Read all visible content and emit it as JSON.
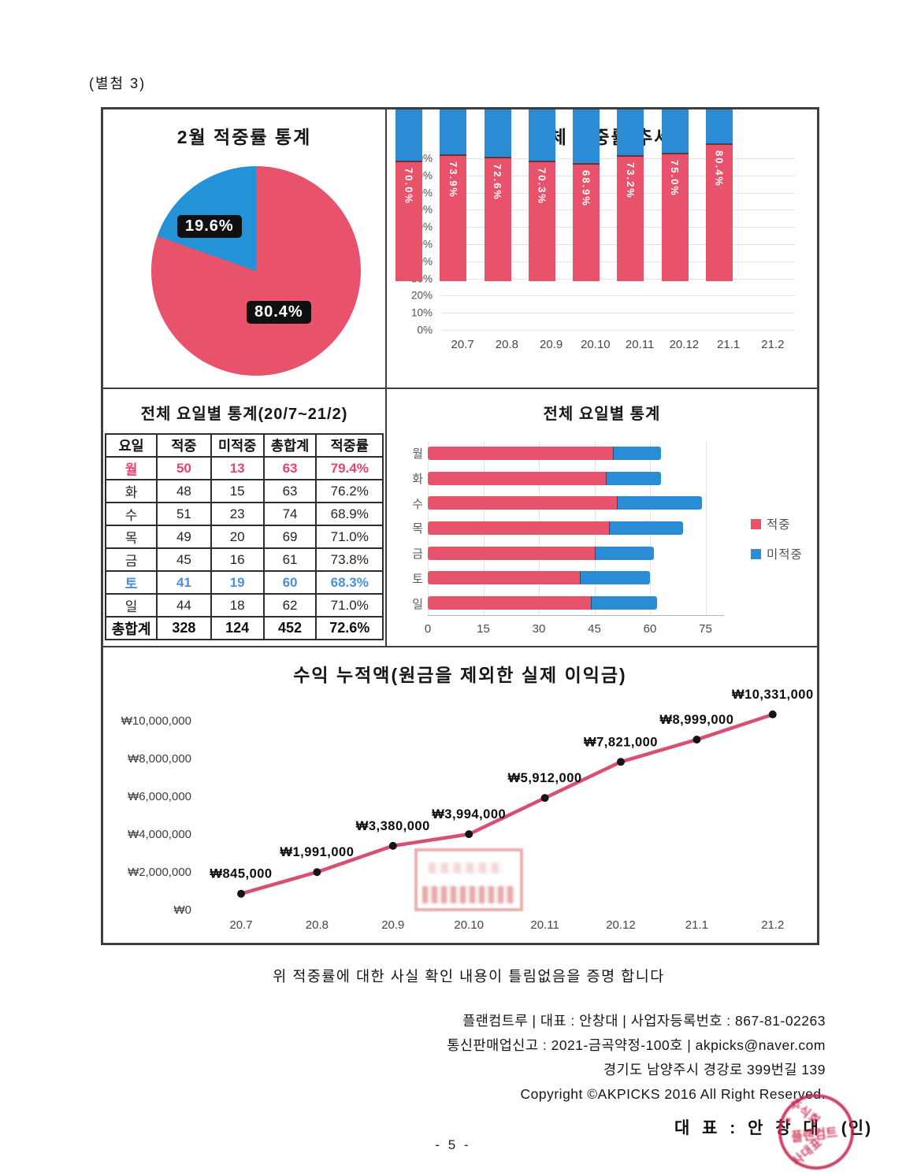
{
  "page": {
    "attachment_label": "(별첨 3)",
    "certification": "위 적중률에 대한 사실 확인 내용이 틀림없음을 증명 합니다",
    "company_lines": [
      "플랜컴트루 | 대표 : 안창대 | 사업자등록번호 : 867-81-02263",
      "통신판매업신고 : 2021-금곡약정-100호 | akpicks@naver.com",
      "경기도 남양주시 경강로 399번길 139",
      "Copyright ©AKPICKS 2016 All Right Reserved."
    ],
    "representative_line": "대 표 : 안 창 대",
    "seal_suffix": "(인)",
    "page_number": "- 5 -"
  },
  "colors": {
    "hit": "#e8536b",
    "miss": "#2b8cd6",
    "pie_miss": "#2492d6",
    "line": "#d94f72",
    "marker": "#151515",
    "stamp": "#c3234b"
  },
  "chart_data": [
    {
      "type": "pie",
      "title": "2월 적중률 통계",
      "slices": [
        {
          "label": "적중",
          "value": 80.4,
          "display": "80.4%",
          "color": "#e8536b"
        },
        {
          "label": "미적중",
          "value": 19.6,
          "display": "19.6%",
          "color": "#2492d6"
        }
      ],
      "legend_position": "none"
    },
    {
      "type": "bar",
      "stacked": true,
      "title": "전체 적중률 추세",
      "categories": [
        "20.7",
        "20.8",
        "20.9",
        "20.10",
        "20.11",
        "20.12",
        "21.1",
        "21.2"
      ],
      "series": [
        {
          "name": "적중",
          "color": "#e8536b",
          "values": [
            70.0,
            73.9,
            72.6,
            70.3,
            68.9,
            73.2,
            75.0,
            80.4
          ]
        },
        {
          "name": "미적중",
          "color": "#2b8cd6",
          "values": [
            30.0,
            26.1,
            27.4,
            29.7,
            31.1,
            26.8,
            25.0,
            19.6
          ]
        }
      ],
      "bar_labels": [
        "70.0%",
        "73.9%",
        "72.6%",
        "70.3%",
        "68.9%",
        "73.2%",
        "75.0%",
        "80.4%"
      ],
      "ylim": [
        0,
        100
      ],
      "yticks": [
        "100%",
        "90%",
        "80%",
        "70%",
        "60%",
        "50%",
        "40%",
        "30%",
        "20%",
        "10%",
        "0%"
      ],
      "grid": true,
      "legend_position": "none"
    },
    {
      "type": "table",
      "title": "전체 요일별 통계(20/7~21/2)",
      "headers": [
        "요일",
        "적중",
        "미적중",
        "총합계",
        "적중률"
      ],
      "rows": [
        {
          "cells": [
            "월",
            "50",
            "13",
            "63",
            "79.4%"
          ],
          "highlight": "hit"
        },
        {
          "cells": [
            "화",
            "48",
            "15",
            "63",
            "76.2%"
          ],
          "highlight": null
        },
        {
          "cells": [
            "수",
            "51",
            "23",
            "74",
            "68.9%"
          ],
          "highlight": null
        },
        {
          "cells": [
            "목",
            "49",
            "20",
            "69",
            "71.0%"
          ],
          "highlight": null
        },
        {
          "cells": [
            "금",
            "45",
            "16",
            "61",
            "73.8%"
          ],
          "highlight": null
        },
        {
          "cells": [
            "토",
            "41",
            "19",
            "60",
            "68.3%"
          ],
          "highlight": "miss"
        },
        {
          "cells": [
            "일",
            "44",
            "18",
            "62",
            "71.0%"
          ],
          "highlight": null
        },
        {
          "cells": [
            "총합계",
            "328",
            "124",
            "452",
            "72.6%"
          ],
          "highlight": "total"
        }
      ]
    },
    {
      "type": "bar",
      "orientation": "horizontal",
      "stacked": true,
      "title": "전체 요일별 통계",
      "categories": [
        "월",
        "화",
        "수",
        "목",
        "금",
        "토",
        "일"
      ],
      "series": [
        {
          "name": "적중",
          "color": "#e8536b",
          "values": [
            50,
            48,
            51,
            49,
            45,
            41,
            44
          ]
        },
        {
          "name": "미적중",
          "color": "#2b8cd6",
          "values": [
            13,
            15,
            23,
            20,
            16,
            19,
            18
          ]
        }
      ],
      "xlim": [
        0,
        80
      ],
      "xticks": [
        0,
        15,
        30,
        45,
        60,
        75
      ],
      "grid": true,
      "legend_position": "right"
    },
    {
      "type": "line",
      "title": "수익 누적액(원금을 제외한 실제 이익금)",
      "x": [
        "20.7",
        "20.8",
        "20.9",
        "20.10",
        "20.11",
        "20.12",
        "21.1",
        "21.2"
      ],
      "values": [
        845000,
        1991000,
        3380000,
        3994000,
        5912000,
        7821000,
        8999000,
        10331000
      ],
      "labels": [
        "₩845,000",
        "₩1,991,000",
        "₩3,380,000",
        "₩3,994,000",
        "₩5,912,000",
        "₩7,821,000",
        "₩8,999,000",
        "₩10,331,000"
      ],
      "yticks": [
        "₩10,000,000",
        "₩8,000,000",
        "₩6,000,000",
        "₩4,000,000",
        "₩2,000,000",
        "₩0"
      ],
      "ylim": [
        0,
        11000000
      ],
      "line_color": "#d94f72",
      "marker_color": "#151515",
      "grid": false,
      "legend_position": "none"
    }
  ],
  "stamp": {
    "ring_text_1": "주식회",
    "ring_text_2": "플랜컴트",
    "ring_text_3": "사대표",
    "star": "★"
  }
}
